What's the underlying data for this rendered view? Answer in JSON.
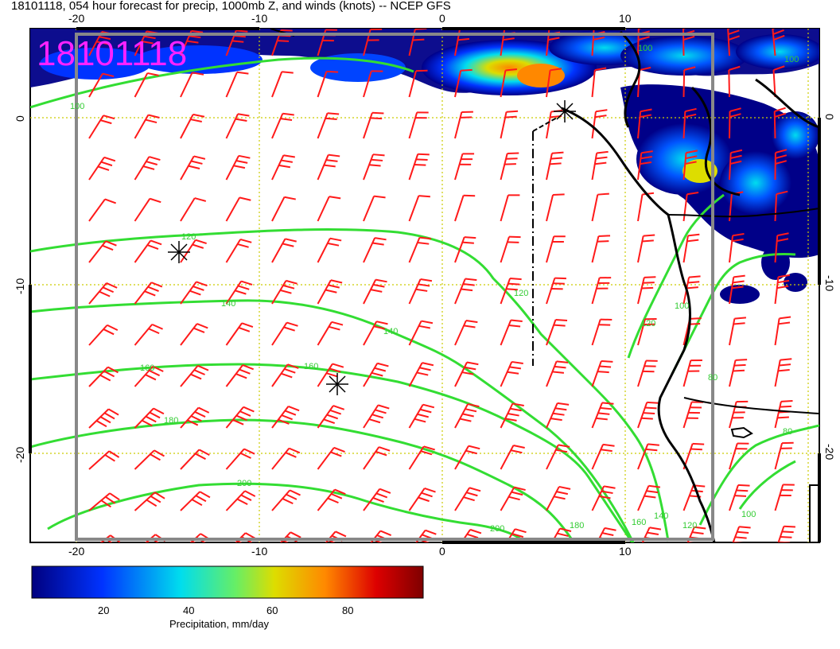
{
  "title": "18101118, 054 hour forecast for precip, 1000mb Z, and winds (knots) -- NCEP GFS",
  "stamp": "18101118",
  "axes": {
    "x_ticks": [
      "-20",
      "-10",
      "0",
      "10"
    ],
    "y_ticks": [
      "0",
      "-10",
      "-20"
    ]
  },
  "contours": [
    {
      "value": "80",
      "label": "80"
    },
    {
      "value": "100",
      "label": "100"
    },
    {
      "value": "120",
      "label": "120"
    },
    {
      "value": "140",
      "label": "140"
    },
    {
      "value": "160",
      "label": "160"
    },
    {
      "value": "180",
      "label": "180"
    },
    {
      "value": "200",
      "label": "200"
    }
  ],
  "colorbar": {
    "label": "Precipitation, mm/day",
    "ticks": [
      "20",
      "40",
      "60",
      "80"
    ]
  },
  "colors": {
    "stamp": "#ff22ff",
    "contour": "#33dd33",
    "wind_barb": "#ff1a1a",
    "grid": "#cccc00",
    "frame": "#888888"
  }
}
